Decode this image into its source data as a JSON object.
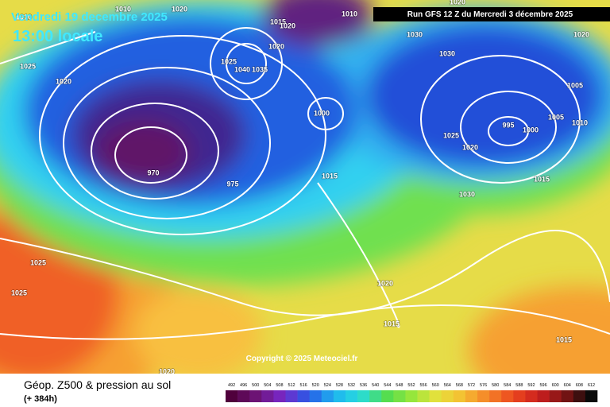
{
  "header": {
    "date": "Vendredi 19 decembre 2025",
    "time": "13:00 locale",
    "run": "Run GFS 12 Z du Mercredi 3 décembre 2025"
  },
  "map": {
    "isobar_labels": [
      1010,
      1010,
      1020,
      1010,
      1015,
      1020,
      1020,
      1020,
      1030,
      1030,
      1025,
      1020,
      1020,
      1025,
      1040,
      1035,
      1005,
      1005,
      1010,
      1000,
      995,
      1000,
      1025,
      1020,
      970,
      975,
      1015,
      1030,
      1015,
      1025,
      1025,
      1020,
      1015,
      1015,
      1020
    ],
    "copyright": "Copyright © 2025 Meteociel.fr"
  },
  "footer": {
    "title": "Géop. Z500 & pression au sol",
    "lead": "(+ 384h)",
    "scale": [
      492,
      496,
      500,
      504,
      508,
      512,
      516,
      520,
      524,
      528,
      532,
      536,
      540,
      544,
      548,
      552,
      556,
      560,
      564,
      568,
      572,
      576,
      580,
      584,
      588,
      592,
      596,
      600,
      604,
      608,
      612
    ]
  }
}
